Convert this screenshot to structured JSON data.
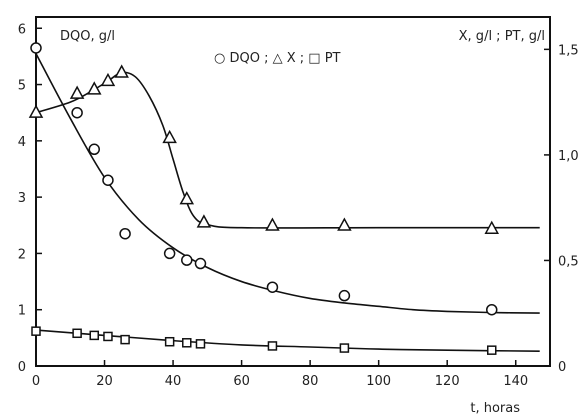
{
  "chart_data": {
    "type": "scatter",
    "labels": {
      "left_axis": "DQO, g/l",
      "right_axis": "X, g/l ; PT, g/l",
      "xlabel": "t, horas",
      "legend": "○ DQO ; △ X ; □ PT"
    },
    "x_axis": {
      "range": [
        0,
        150
      ],
      "ticks": [
        0,
        20,
        40,
        60,
        80,
        100,
        120,
        140
      ]
    },
    "left_y_axis": {
      "range": [
        0,
        6.2
      ],
      "ticks": [
        0,
        1,
        2,
        3,
        4,
        5,
        6
      ]
    },
    "right_y_axis": {
      "range": [
        0,
        1.6533
      ],
      "ticks": [
        0,
        0.5,
        1.0,
        1.5
      ],
      "tick_labels": [
        "0",
        "0,5",
        "1,0",
        "1,5"
      ]
    },
    "series": [
      {
        "name": "DQO",
        "axis": "left",
        "marker": "circle",
        "points": [
          [
            0,
            5.65
          ],
          [
            12,
            4.5
          ],
          [
            17,
            3.85
          ],
          [
            21,
            3.3
          ],
          [
            26,
            2.35
          ],
          [
            39,
            2.0
          ],
          [
            44,
            1.88
          ],
          [
            48,
            1.82
          ],
          [
            69,
            1.4
          ],
          [
            90,
            1.25
          ],
          [
            133,
            1.0
          ]
        ],
        "curve": [
          [
            0,
            5.55
          ],
          [
            10,
            4.4
          ],
          [
            20,
            3.35
          ],
          [
            30,
            2.6
          ],
          [
            40,
            2.1
          ],
          [
            50,
            1.75
          ],
          [
            60,
            1.5
          ],
          [
            70,
            1.33
          ],
          [
            80,
            1.2
          ],
          [
            90,
            1.12
          ],
          [
            100,
            1.06
          ],
          [
            110,
            1.0
          ],
          [
            120,
            0.97
          ],
          [
            133,
            0.95
          ],
          [
            147,
            0.94
          ]
        ]
      },
      {
        "name": "X",
        "axis": "right",
        "marker": "triangle",
        "points": [
          [
            0,
            1.2
          ],
          [
            12,
            1.29
          ],
          [
            17,
            1.31
          ],
          [
            21,
            1.35
          ],
          [
            25,
            1.39
          ],
          [
            39,
            1.08
          ],
          [
            44,
            0.79
          ],
          [
            49,
            0.68
          ],
          [
            69,
            0.665
          ],
          [
            90,
            0.665
          ],
          [
            133,
            0.65
          ]
        ],
        "curve": [
          [
            0,
            1.2
          ],
          [
            10,
            1.25
          ],
          [
            16,
            1.3
          ],
          [
            21,
            1.35
          ],
          [
            25,
            1.39
          ],
          [
            29,
            1.37
          ],
          [
            33,
            1.28
          ],
          [
            37,
            1.14
          ],
          [
            40,
            0.98
          ],
          [
            43,
            0.82
          ],
          [
            46,
            0.71
          ],
          [
            50,
            0.67
          ],
          [
            60,
            0.655
          ],
          [
            100,
            0.655
          ],
          [
            147,
            0.655
          ]
        ]
      },
      {
        "name": "PT",
        "axis": "right",
        "marker": "square",
        "points": [
          [
            0,
            0.165
          ],
          [
            12,
            0.155
          ],
          [
            17,
            0.145
          ],
          [
            21,
            0.14
          ],
          [
            26,
            0.125
          ],
          [
            39,
            0.115
          ],
          [
            44,
            0.11
          ],
          [
            48,
            0.105
          ],
          [
            69,
            0.095
          ],
          [
            90,
            0.085
          ],
          [
            133,
            0.075
          ]
        ],
        "curve": [
          [
            0,
            0.17
          ],
          [
            20,
            0.145
          ],
          [
            40,
            0.12
          ],
          [
            60,
            0.1
          ],
          [
            80,
            0.09
          ],
          [
            100,
            0.08
          ],
          [
            120,
            0.075
          ],
          [
            147,
            0.07
          ]
        ]
      }
    ]
  }
}
